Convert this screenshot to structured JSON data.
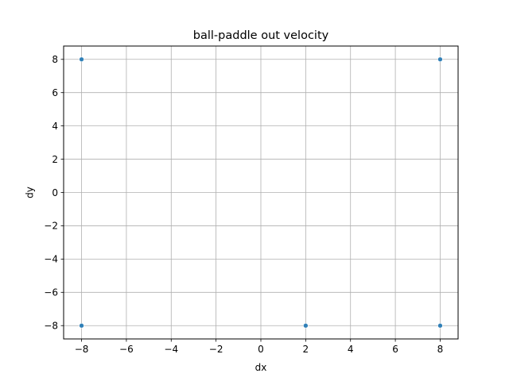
{
  "chart_data": {
    "type": "scatter",
    "title": "ball-paddle out velocity",
    "xlabel": "dx",
    "ylabel": "dy",
    "xlim": [
      -8.8,
      8.8
    ],
    "ylim": [
      -8.8,
      8.8
    ],
    "xticks": [
      -8,
      -6,
      -4,
      -2,
      0,
      2,
      4,
      6,
      8
    ],
    "yticks": [
      -8,
      -6,
      -4,
      -2,
      0,
      2,
      4,
      6,
      8
    ],
    "grid": true,
    "points": [
      {
        "x": -8,
        "y": 8
      },
      {
        "x": 8,
        "y": 8
      },
      {
        "x": -8,
        "y": -8
      },
      {
        "x": 2,
        "y": -8
      },
      {
        "x": 8,
        "y": -8
      }
    ],
    "marker_color": "#1f77b4",
    "grid_color": "#b0b0b0"
  }
}
